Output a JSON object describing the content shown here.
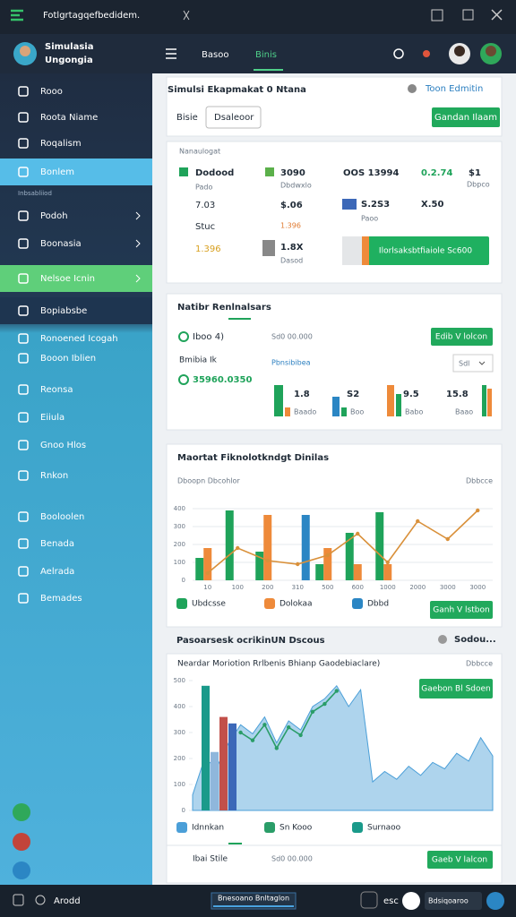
{
  "window": {
    "title": "Fotlgrtagqefbedidem."
  },
  "header": {
    "app_name": [
      "Simulasia",
      "Ungongia"
    ],
    "tabs": [
      "Basoo",
      "Binis"
    ]
  },
  "sidebar": {
    "items": [
      "Rooo",
      "Roota Niame",
      "Roqalism",
      "Bonlem",
      "Inbsabliiod",
      "Podoh",
      "Boonasia",
      "Nelsoe Icnin",
      "Bopiabsbe",
      "Ronoened Icogah",
      "Booon Iblien",
      "Reonsa",
      "Eiiula",
      "Gnoo Hlos",
      "Rnkon",
      "Booloolen",
      "Benada",
      "Aelrada",
      "Bemades"
    ]
  },
  "simulation": {
    "title": "Simulsi Ekapmakat 0 Ntana",
    "action_link": "Toon Edmitin",
    "field_label": "Bisie",
    "field_value": "Dsaleoor",
    "button": "Gandan Ilaam"
  },
  "summary": {
    "title": "Nanaulogat",
    "stats": [
      {
        "value": "Dodood",
        "label": "Pado"
      },
      {
        "value": "7.03"
      },
      {
        "value": "Stuc"
      },
      {
        "value": "1.396"
      },
      {
        "value": "3090",
        "label": "Dbdwxlo"
      },
      {
        "value": "$.06"
      },
      {
        "value": "1.396"
      },
      {
        "value": "1.8X",
        "label": "Dasod"
      },
      {
        "value": "OOS 13994"
      },
      {
        "value": "0.2.74"
      },
      {
        "value": "$1",
        "label": "Dbpco"
      },
      {
        "value": "S.2S3",
        "label": "Paoo"
      },
      {
        "value": "X.50"
      }
    ],
    "button": "Ilorlsaksbtfiaiole Sc600"
  },
  "metrics": {
    "title": "Natibr Renlnalsars",
    "row1": {
      "label": "Iboo 4)",
      "value": "Sd0 00.000",
      "button": "Edib V lolcon"
    },
    "row2": {
      "label": "Bmibia Ik",
      "link": "Pbnsibibea",
      "select": "Sdl"
    },
    "total": "35960.0350",
    "groups": [
      {
        "value": "1.8",
        "label": "Baado"
      },
      {
        "value": "S2",
        "label": "Boo"
      },
      {
        "value": "9.5",
        "label": "Babo"
      },
      {
        "value": "15.8",
        "label": "Baao"
      }
    ]
  },
  "charts": [
    {
      "type": "combo",
      "title": "Maortat Fiknolotkndgt Dinilas",
      "subtitle": "Dboopn Dbcohlor",
      "note": "Dbbcce",
      "button": "Ganh V lstbon",
      "categories": [
        "10",
        "100",
        "200",
        "310",
        "500",
        "600",
        "1000",
        "2000",
        "3000",
        "3000"
      ],
      "ylim": [
        0,
        400
      ],
      "yticks": [
        0,
        100,
        200,
        300,
        400
      ],
      "grid": true,
      "series": [
        {
          "name": "Ubdcsse",
          "type": "bar",
          "color": "#1fa35a",
          "values": [
            125,
            390,
            160,
            null,
            90,
            265,
            380,
            null,
            null,
            null
          ]
        },
        {
          "name": "Dolokaa",
          "type": "bar",
          "color": "#ee8a3a",
          "values": [
            180,
            null,
            365,
            null,
            180,
            90,
            90,
            null,
            null,
            null
          ]
        },
        {
          "name": "Dbbd",
          "type": "bar",
          "color": "#2b86c4",
          "values": [
            null,
            null,
            null,
            365,
            null,
            null,
            null,
            null,
            null,
            null
          ]
        },
        {
          "type": "line",
          "color": "#d9903a",
          "values": [
            40,
            180,
            110,
            90,
            140,
            260,
            100,
            330,
            230,
            390
          ]
        }
      ]
    },
    {
      "type": "area",
      "section_title": "Pasoarsesk ocrikinUN Dscous",
      "section_action": "Sodou...",
      "title": "Neardar Moriotion Rrlbenis Bhianp Gaodebiaclare)",
      "note": "Dbbcce",
      "button": "Gaebon Bl Sdoen",
      "ylim": [
        0,
        500
      ],
      "yticks": [
        0,
        100,
        200,
        300,
        400,
        500
      ],
      "grid": false,
      "series": [
        {
          "name": "Idnnkan",
          "type": "area",
          "color": "#4b9fd8",
          "values": [
            60,
            200,
            165,
            260,
            330,
            295,
            360,
            260,
            345,
            310,
            400,
            430,
            480,
            400,
            465,
            110,
            150,
            120,
            170,
            135,
            185,
            160,
            220,
            190,
            280,
            210
          ]
        },
        {
          "name": "Sn Kooo",
          "type": "line",
          "color": "#2a9d68",
          "values": [
            null,
            null,
            null,
            null,
            300,
            270,
            330,
            240,
            320,
            290,
            380,
            410,
            460,
            null,
            null,
            null,
            null,
            null,
            null,
            null,
            null,
            null,
            null,
            null,
            null,
            null
          ]
        },
        {
          "name": "Surnaoo",
          "type": "bar",
          "colors": [
            "#1a9a8a",
            "#8fb7dc",
            "#c2504a",
            "#3c68b8"
          ],
          "values": [
            480,
            225,
            360,
            335
          ]
        }
      ]
    }
  ],
  "footer_row": {
    "label": "Ibai Stile",
    "value": "Sd0 00.000",
    "button": "Gaeb V lalcon"
  },
  "status_bar": {
    "left": "Arodd",
    "center": "Bnesoano Bnltaglon",
    "key": "esc",
    "right": "Bdsiqoaroo"
  }
}
